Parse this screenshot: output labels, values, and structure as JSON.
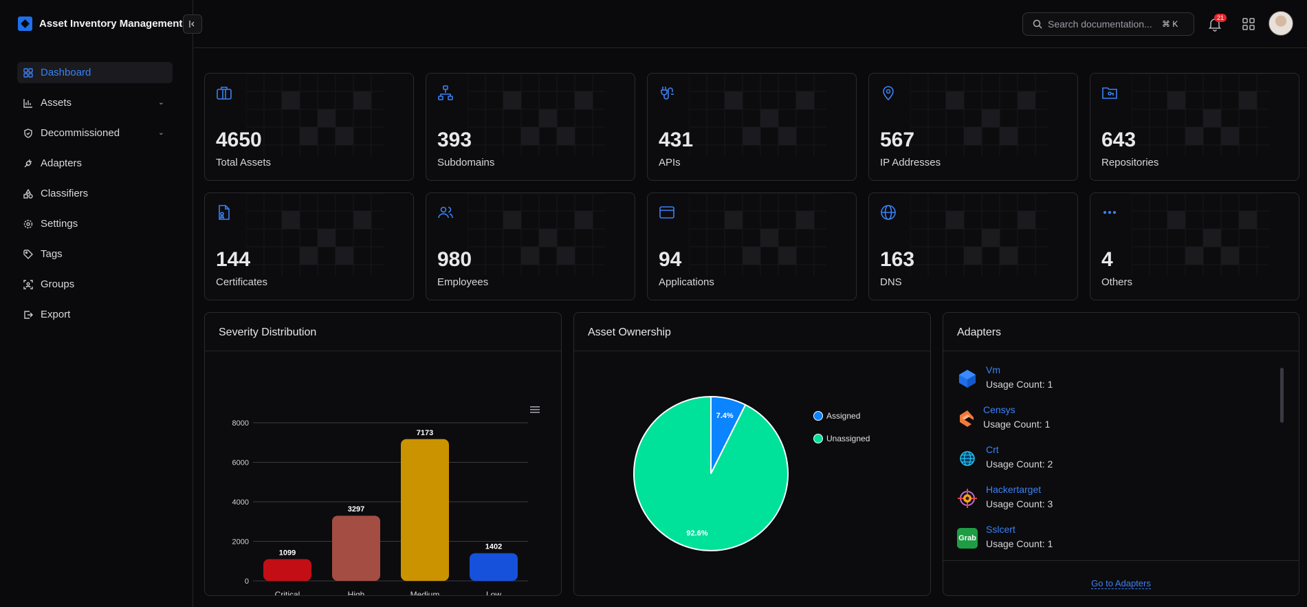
{
  "app": {
    "title": "Asset Inventory Management"
  },
  "sidebar": {
    "items": [
      {
        "label": "Dashboard",
        "icon": "dashboard-icon",
        "active": true
      },
      {
        "label": "Assets",
        "icon": "assets-icon",
        "expandable": true
      },
      {
        "label": "Decommissioned",
        "icon": "shield-icon",
        "expandable": true
      },
      {
        "label": "Adapters",
        "icon": "plug-icon"
      },
      {
        "label": "Classifiers",
        "icon": "shapes-icon"
      },
      {
        "label": "Settings",
        "icon": "gear-icon"
      },
      {
        "label": "Tags",
        "icon": "tag-icon"
      },
      {
        "label": "Groups",
        "icon": "group-icon"
      },
      {
        "label": "Export",
        "icon": "export-icon"
      }
    ]
  },
  "header": {
    "search_placeholder": "Search documentation...",
    "search_shortcut": "⌘ K",
    "notification_count": "21"
  },
  "stats": [
    {
      "value": "4650",
      "label": "Total Assets",
      "icon": "briefcase-icon"
    },
    {
      "value": "393",
      "label": "Subdomains",
      "icon": "network-icon"
    },
    {
      "value": "431",
      "label": "APIs",
      "icon": "api-plug-icon"
    },
    {
      "value": "567",
      "label": "IP Addresses",
      "icon": "map-pin-icon"
    },
    {
      "value": "643",
      "label": "Repositories",
      "icon": "folder-git-icon"
    },
    {
      "value": "144",
      "label": "Certificates",
      "icon": "certificate-file-icon"
    },
    {
      "value": "980",
      "label": "Employees",
      "icon": "users-icon"
    },
    {
      "value": "94",
      "label": "Applications",
      "icon": "app-window-icon"
    },
    {
      "value": "163",
      "label": "DNS",
      "icon": "globe-icon"
    },
    {
      "value": "4",
      "label": "Others",
      "icon": "more-dots-icon"
    }
  ],
  "panels": {
    "severity_title": "Severity Distribution",
    "ownership_title": "Asset Ownership",
    "adapters_title": "Adapters"
  },
  "chart_data": [
    {
      "type": "bar",
      "title": "Severity Distribution",
      "categories": [
        "Critical",
        "High",
        "Medium",
        "Low"
      ],
      "values": [
        1099,
        3297,
        7173,
        1402
      ],
      "colors": [
        "#c40e15",
        "#a44d43",
        "#cc9300",
        "#1651db"
      ],
      "ylim": [
        0,
        8000
      ],
      "yticks": [
        0,
        2000,
        4000,
        6000,
        8000
      ],
      "grid": true
    },
    {
      "type": "pie",
      "title": "Asset Ownership",
      "labels": [
        "Assigned",
        "Unassigned"
      ],
      "values": [
        7.4,
        92.6
      ],
      "value_labels": [
        "7.4%",
        "92.6%"
      ],
      "colors": [
        "#0a84ff",
        "#00e19a"
      ],
      "legend": "right"
    }
  ],
  "adapters": {
    "items": [
      {
        "name": "Vm",
        "count": "Usage Count: 1",
        "logo": "vm-cube-logo"
      },
      {
        "name": "Censys",
        "count": "Usage Count: 1",
        "logo": "censys-logo"
      },
      {
        "name": "Crt",
        "count": "Usage Count: 2",
        "logo": "crt-globe-logo"
      },
      {
        "name": "Hackertarget",
        "count": "Usage Count: 3",
        "logo": "hackertarget-logo"
      },
      {
        "name": "Sslcert",
        "count": "Usage Count: 1",
        "logo": "sslcert-logo",
        "logo_text": "Grab"
      }
    ],
    "link_label": "Go to Adapters"
  }
}
